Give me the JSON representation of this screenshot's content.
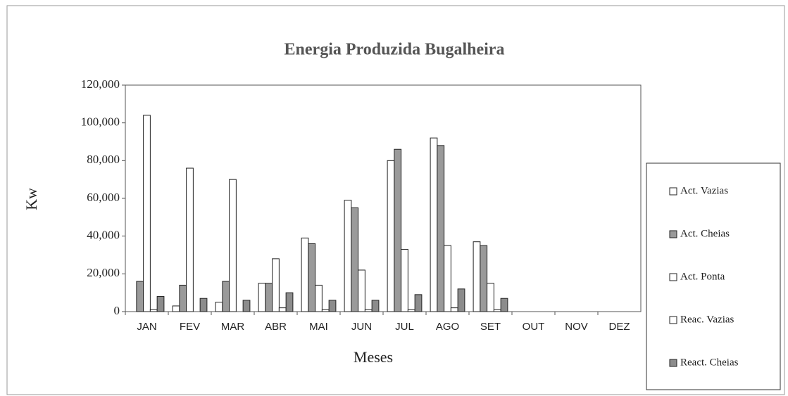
{
  "chart_data": {
    "type": "bar",
    "title": "Energia Produzida Bugalheira",
    "x_label": "Meses",
    "y_label": "Kw",
    "categories": [
      "JAN",
      "FEV",
      "MAR",
      "ABR",
      "MAI",
      "JUN",
      "JUL",
      "AGO",
      "SET",
      "OUT",
      "NOV",
      "DEZ"
    ],
    "series": [
      {
        "name": "Act. Vazias",
        "color": "#ffffff",
        "values": [
          0,
          3000,
          5000,
          15000,
          39000,
          59000,
          80000,
          92000,
          37000,
          null,
          null,
          null
        ]
      },
      {
        "name": "Act. Cheias",
        "color": "#9a9a9a",
        "values": [
          16000,
          14000,
          16000,
          15000,
          36000,
          55000,
          86000,
          88000,
          35000,
          null,
          null,
          null
        ]
      },
      {
        "name": "Act. Ponta",
        "color": "#ffffff",
        "values": [
          104000,
          76000,
          70000,
          28000,
          14000,
          22000,
          33000,
          35000,
          15000,
          null,
          null,
          null
        ]
      },
      {
        "name": "Reac. Vazias",
        "color": "#ffffff",
        "values": [
          1000,
          0,
          0,
          2000,
          1000,
          1000,
          1000,
          2000,
          1000,
          null,
          null,
          null
        ]
      },
      {
        "name": "React. Cheias",
        "color": "#8c8c8c",
        "values": [
          8000,
          7000,
          6000,
          10000,
          6000,
          6000,
          9000,
          12000,
          7000,
          null,
          null,
          null
        ]
      }
    ],
    "ylim": [
      0,
      120000
    ],
    "yticks": [
      0,
      {
        "value": 20000,
        "label": "20,000"
      },
      {
        "value": 40000,
        "label": "40,000"
      },
      {
        "value": 60000,
        "label": "60,000"
      },
      {
        "value": 80000,
        "label": "80,000"
      },
      {
        "value": 100000,
        "label": "100,000"
      },
      {
        "value": 120000,
        "label": "120,000"
      }
    ],
    "legend": "right"
  }
}
